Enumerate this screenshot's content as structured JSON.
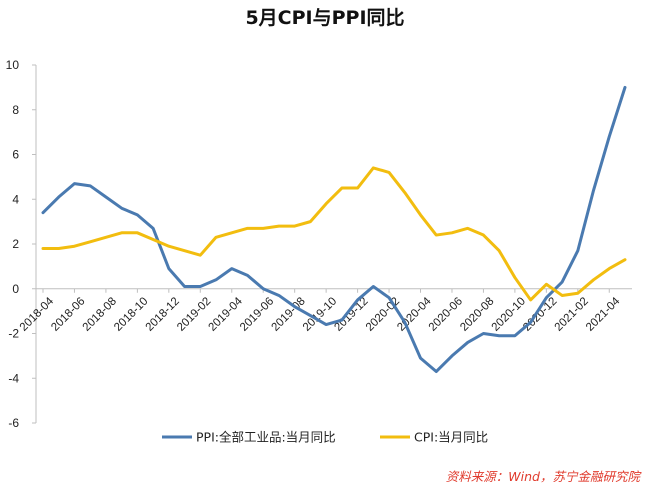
{
  "chart_data": {
    "type": "line",
    "title": "5月CPI与PPI同比",
    "source": "资料来源：Wind，苏宁金融研究院",
    "ylim": [
      -6,
      10
    ],
    "yticks": [
      -6,
      -4,
      -2,
      0,
      2,
      4,
      6,
      8,
      10
    ],
    "grid": false,
    "legend_position": "bottom",
    "x": [
      "2018-04",
      "2018-05",
      "2018-06",
      "2018-07",
      "2018-08",
      "2018-09",
      "2018-10",
      "2018-11",
      "2018-12",
      "2019-01",
      "2019-02",
      "2019-03",
      "2019-04",
      "2019-05",
      "2019-06",
      "2019-07",
      "2019-08",
      "2019-09",
      "2019-10",
      "2019-11",
      "2019-12",
      "2020-01",
      "2020-02",
      "2020-03",
      "2020-04",
      "2020-05",
      "2020-06",
      "2020-07",
      "2020-08",
      "2020-09",
      "2020-10",
      "2020-11",
      "2020-12",
      "2021-01",
      "2021-02",
      "2021-03",
      "2021-04",
      "2021-05"
    ],
    "xtick_labels": [
      "2018-04",
      "2018-06",
      "2018-08",
      "2018-10",
      "2018-12",
      "2019-02",
      "2019-04",
      "2019-06",
      "2019-08",
      "2019-10",
      "2019-12",
      "2020-02",
      "2020-04",
      "2020-06",
      "2020-08",
      "2020-10",
      "2020-12",
      "2021-02",
      "2021-04"
    ],
    "series": [
      {
        "name": "PPI:全部工业品:当月同比",
        "color": "#4a7ab0",
        "values": [
          3.4,
          4.1,
          4.7,
          4.6,
          4.1,
          3.6,
          3.3,
          2.7,
          0.9,
          0.1,
          0.1,
          0.4,
          0.9,
          0.6,
          0.0,
          -0.3,
          -0.8,
          -1.2,
          -1.6,
          -1.4,
          -0.5,
          0.1,
          -0.4,
          -1.5,
          -3.1,
          -3.7,
          -3.0,
          -2.4,
          -2.0,
          -2.1,
          -2.1,
          -1.5,
          -0.4,
          0.3,
          1.7,
          4.4,
          6.8,
          9.0
        ]
      },
      {
        "name": "CPI:当月同比",
        "color": "#f2bd0f",
        "values": [
          1.8,
          1.8,
          1.9,
          2.1,
          2.3,
          2.5,
          2.5,
          2.2,
          1.9,
          1.7,
          1.5,
          2.3,
          2.5,
          2.7,
          2.7,
          2.8,
          2.8,
          3.0,
          3.8,
          4.5,
          4.5,
          5.4,
          5.2,
          4.3,
          3.3,
          2.4,
          2.5,
          2.7,
          2.4,
          1.7,
          0.5,
          -0.5,
          0.2,
          -0.3,
          -0.2,
          0.4,
          0.9,
          1.3
        ]
      }
    ]
  }
}
